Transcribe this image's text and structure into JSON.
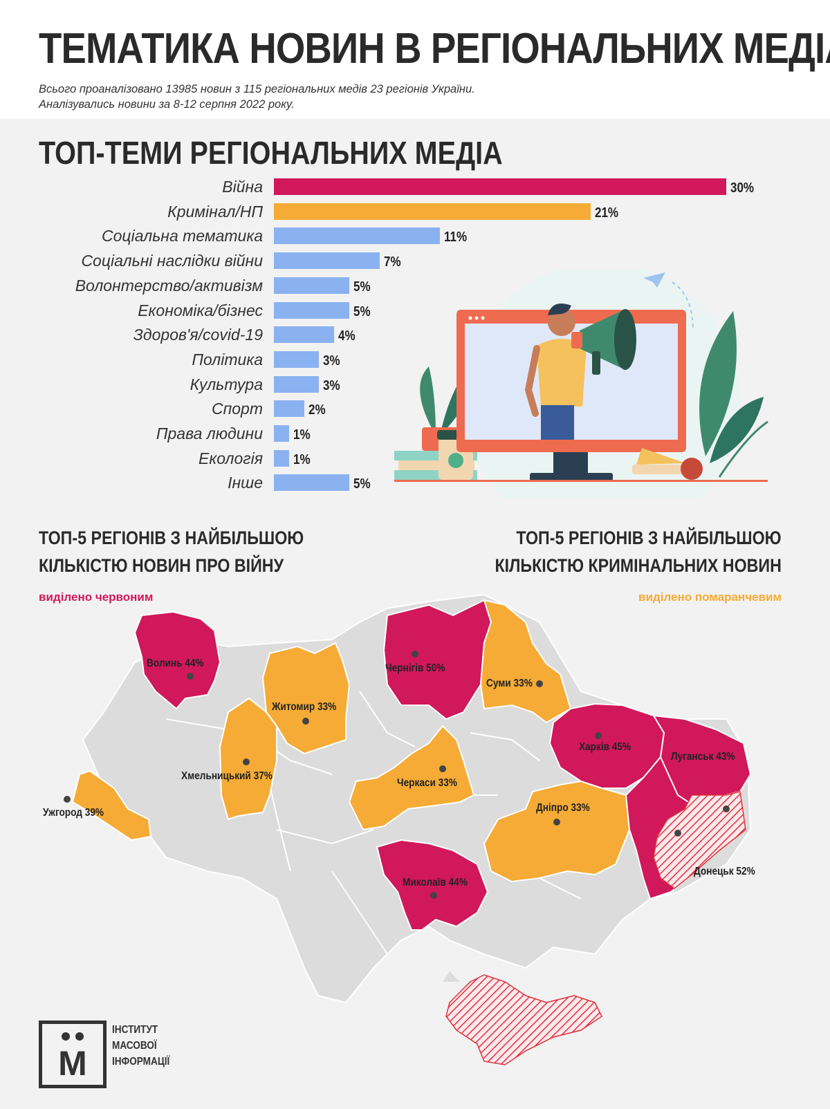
{
  "header": {
    "title": "ТЕМАТИКА НОВИН В РЕГІОНАЛЬНИХ МЕДІА",
    "subtitle_1": "Всього проаналізовано 13985 новин з 115 регіональних медів 23 регіонів України.",
    "subtitle_2": "Аналізувались новини за 8-12 серпня 2022 року."
  },
  "colors": {
    "war": "#d0185a",
    "crime": "#f5ab35",
    "other": "#8ab2f0",
    "map_gray": "#dcdcdc"
  },
  "chart_data": [
    {
      "type": "bar",
      "orientation": "horizontal",
      "title": "ТОП-ТЕМИ РЕГІОНАЛЬНИХ МЕДІА",
      "categories": [
        "Війна",
        "Кримінал/НП",
        "Соціальна тематика",
        "Соціальні наслідки війни",
        "Волонтерство/активізм",
        "Економіка/бізнес",
        "Здоров'я/covid-19",
        "Політика",
        "Культура",
        "Спорт",
        "Права людини",
        "Екологія",
        "Інше"
      ],
      "values": [
        30,
        21,
        11,
        7,
        5,
        5,
        4,
        3,
        3,
        2,
        1,
        1,
        5
      ],
      "value_labels": [
        "30%",
        "21%",
        "11%",
        "7%",
        "5%",
        "5%",
        "4%",
        "3%",
        "3%",
        "2%",
        "1%",
        "1%",
        "5%"
      ],
      "bar_colors": [
        "#d0185a",
        "#f5ab35",
        "#8ab2f0",
        "#8ab2f0",
        "#8ab2f0",
        "#8ab2f0",
        "#8ab2f0",
        "#8ab2f0",
        "#8ab2f0",
        "#8ab2f0",
        "#8ab2f0",
        "#8ab2f0",
        "#8ab2f0"
      ],
      "xlim": [
        0,
        30
      ]
    },
    {
      "type": "map",
      "war_title_1": "ТОП-5 РЕГІОНІВ З НАЙБІЛЬШОЮ",
      "war_title_2": "КІЛЬКІСТЮ НОВИН ПРО ВІЙНУ",
      "war_note": "виділено червоним",
      "crime_title_1": "ТОП-5 РЕГІОНІВ З НАЙБІЛЬШОЮ",
      "crime_title_2": "КІЛЬКІСТЮ КРИМІНАЛЬНИХ НОВИН",
      "crime_note": "виділено помаранчевим",
      "regions": [
        {
          "label": "Волинь 44%",
          "category": "war"
        },
        {
          "label": "Чернігів 50%",
          "category": "war"
        },
        {
          "label": "Харків 45%",
          "category": "war"
        },
        {
          "label": "Луганськ 43%",
          "category": "war"
        },
        {
          "label": "Миколаїв 44%",
          "category": "war"
        },
        {
          "label": "Донецьк 52%",
          "category": "war"
        },
        {
          "label": "Житомир 33%",
          "category": "crime"
        },
        {
          "label": "Суми 33%",
          "category": "crime"
        },
        {
          "label": "Хмельницький 37%",
          "category": "crime"
        },
        {
          "label": "Ужгород 39%",
          "category": "crime"
        },
        {
          "label": "Черкаси 33%",
          "category": "crime"
        },
        {
          "label": "Дніпро 33%",
          "category": "crime"
        }
      ]
    }
  ],
  "logo": {
    "mark": "М",
    "line1": "ІНСТИТУТ",
    "line2": "МАСОВОЇ",
    "line3": "ІНФОРМАЦІЇ"
  },
  "illustration": {
    "icon": "megaphone-monitor-illustration"
  }
}
